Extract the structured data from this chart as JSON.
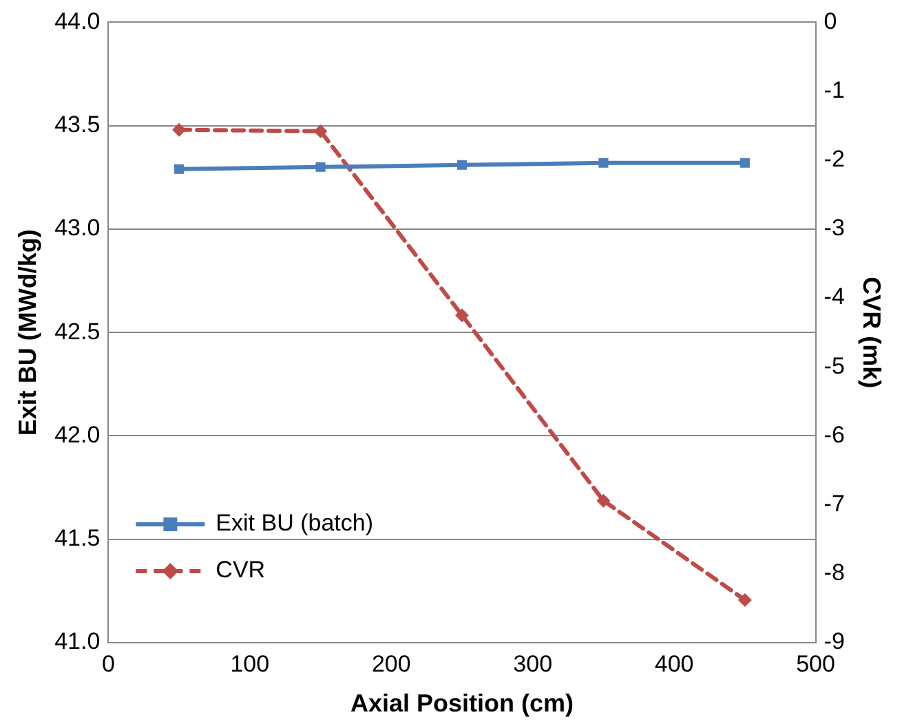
{
  "chart_data": {
    "type": "line",
    "xlabel": "Axial Position (cm)",
    "ylabel": "Exit BU (MWd/kg)",
    "y2label": "CVR (mk)",
    "x": [
      50,
      150,
      250,
      350,
      450
    ],
    "series": [
      {
        "name": "Exit BU (batch)",
        "color": "#4a7ebb",
        "values": [
          43.29,
          43.3,
          43.31,
          43.32,
          43.32
        ],
        "marker": "square",
        "line_style": "solid"
      },
      {
        "name": "CVR",
        "color": "#be4b48",
        "values": [
          -1.56,
          -1.58,
          -4.25,
          -6.94,
          -8.38
        ],
        "axis": "y2",
        "marker": "diamond",
        "line_style": "dashed"
      }
    ],
    "xlim": [
      0,
      500
    ],
    "xticks": [
      0,
      100,
      200,
      300,
      400,
      500
    ],
    "ylim": [
      41,
      44
    ],
    "yticks": [
      {
        "value": 41,
        "label": "41.0"
      },
      {
        "value": 41.5,
        "label": "41.5"
      },
      {
        "value": 42,
        "label": "42.0"
      },
      {
        "value": 42.5,
        "label": "42.5"
      },
      {
        "value": 43,
        "label": "43.0"
      },
      {
        "value": 43.5,
        "label": "43.5"
      },
      {
        "value": 44,
        "label": "44.0"
      }
    ],
    "y2lim": [
      -9,
      0
    ],
    "y2ticks": [
      -9,
      -8,
      -7,
      -6,
      -5,
      -4,
      -3,
      -2,
      -1,
      0
    ],
    "grid": "y",
    "legend": "bottom left"
  }
}
